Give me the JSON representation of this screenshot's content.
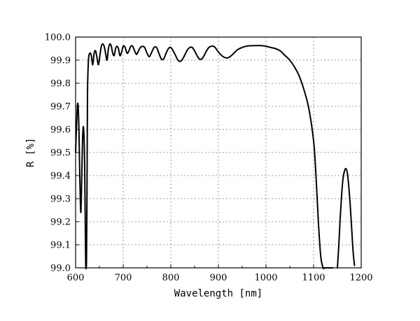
{
  "chart_data": {
    "type": "line",
    "xlabel": "Wavelength [nm]",
    "ylabel": "R [%]",
    "xlim": [
      600,
      1200
    ],
    "ylim": [
      99.0,
      100.0
    ],
    "x_ticks": [
      600,
      700,
      800,
      900,
      1000,
      1100,
      1200
    ],
    "y_ticks": [
      99.0,
      99.1,
      99.2,
      99.3,
      99.4,
      99.5,
      99.6,
      99.7,
      99.8,
      99.9,
      100.0
    ],
    "x_tick_labels": [
      "600",
      "700",
      "800",
      "900",
      "1000",
      "1100",
      "1200"
    ],
    "y_tick_labels": [
      "99.0",
      "99.1",
      "99.2",
      "99.3",
      "99.4",
      "99.5",
      "99.6",
      "99.7",
      "99.8",
      "99.9",
      "100.0"
    ],
    "grid": true,
    "series": [
      {
        "color": "#000000",
        "segments": [
          {
            "x": [
              600,
              603,
              605,
              607,
              609,
              611,
              613,
              615,
              617,
              619,
              621,
              622,
              623,
              624,
              625,
              627,
              630,
              633,
              636,
              639,
              642,
              645,
              648,
              651,
              654,
              657,
              660,
              663,
              666,
              669,
              672,
              675,
              678,
              681,
              684,
              687,
              690,
              693,
              696,
              700,
              704,
              708,
              712,
              716,
              720,
              724,
              728,
              732,
              736,
              740,
              745,
              750,
              755,
              760,
              765,
              770,
              775,
              780,
              785,
              790,
              795,
              800,
              805,
              810,
              815,
              820,
              825,
              830,
              835,
              840,
              845,
              850,
              855,
              860,
              865,
              870,
              875,
              880,
              885,
              890,
              895,
              900,
              910,
              920,
              930,
              940,
              950,
              958,
              965,
              975,
              990,
              1000,
              1010,
              1020,
              1030,
              1040,
              1050,
              1060,
              1070,
              1080,
              1090,
              1100,
              1105,
              1110,
              1115,
              1120,
              1123,
              1126,
              1128,
              1130,
              1132,
              1134,
              1136,
              1138,
              1140
            ],
            "y": [
              99.5,
              99.67,
              99.71,
              99.6,
              99.38,
              99.24,
              99.4,
              99.58,
              99.6,
              99.45,
              99.05,
              99.0,
              99.05,
              99.35,
              99.75,
              99.9,
              99.93,
              99.92,
              99.88,
              99.93,
              99.94,
              99.91,
              99.88,
              99.92,
              99.96,
              99.97,
              99.96,
              99.93,
              99.9,
              99.95,
              99.97,
              99.96,
              99.93,
              99.92,
              99.95,
              99.96,
              99.95,
              99.92,
              99.93,
              99.96,
              99.955,
              99.93,
              99.94,
              99.96,
              99.96,
              99.94,
              99.925,
              99.94,
              99.955,
              99.96,
              99.955,
              99.93,
              99.915,
              99.935,
              99.955,
              99.955,
              99.93,
              99.905,
              99.905,
              99.93,
              99.95,
              99.955,
              99.94,
              99.92,
              99.9,
              99.895,
              99.905,
              99.925,
              99.945,
              99.955,
              99.955,
              99.94,
              99.92,
              99.905,
              99.905,
              99.92,
              99.94,
              99.955,
              99.96,
              99.96,
              99.95,
              99.935,
              99.915,
              99.91,
              99.925,
              99.945,
              99.955,
              99.96,
              99.962,
              99.963,
              99.963,
              99.96,
              99.955,
              99.95,
              99.94,
              99.92,
              99.9,
              99.87,
              99.83,
              99.77,
              99.69,
              99.55,
              99.4,
              99.2,
              99.05,
              99.0,
              99.0,
              99.0,
              99.0,
              99.0,
              99.0,
              99.0,
              99.0,
              99.0,
              99.0
            ]
          },
          {
            "x": [
              1150,
              1153,
              1156,
              1159,
              1162,
              1165,
              1168,
              1171,
              1174,
              1177,
              1180,
              1183,
              1186
            ],
            "y": [
              99.0,
              99.1,
              99.22,
              99.32,
              99.39,
              99.42,
              99.43,
              99.41,
              99.35,
              99.27,
              99.17,
              99.07,
              99.01
            ]
          }
        ]
      }
    ]
  }
}
